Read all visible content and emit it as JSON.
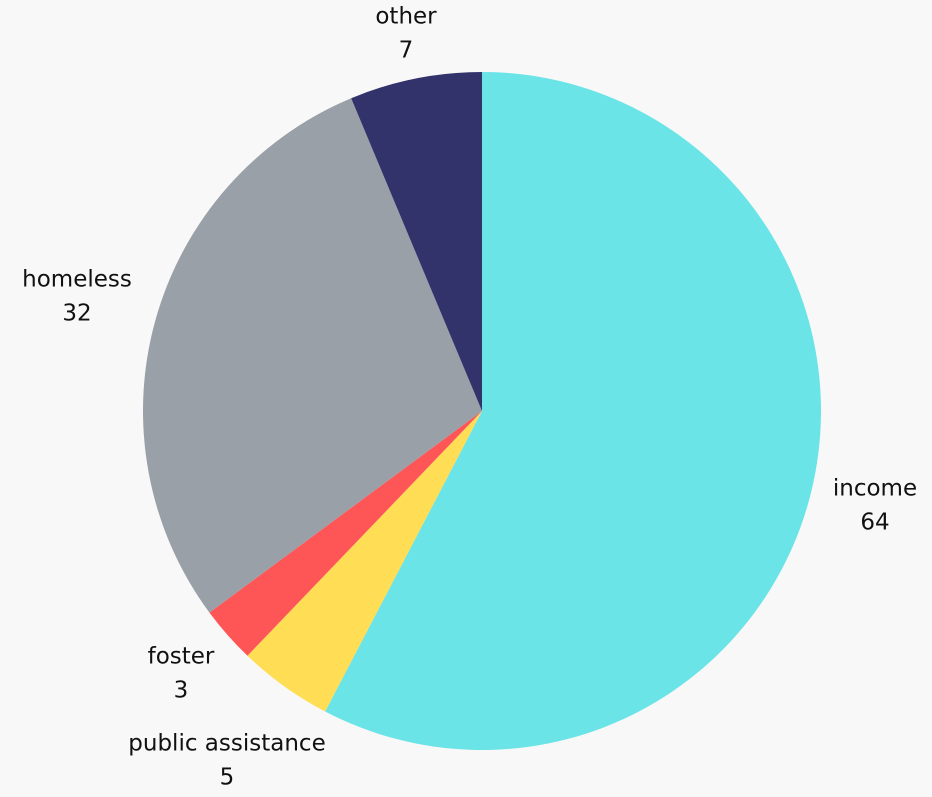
{
  "chart_data": {
    "type": "pie",
    "title": "",
    "slices": [
      {
        "label": "income",
        "value": 64,
        "color": "#6ae4e7"
      },
      {
        "label": "public assistance",
        "value": 5,
        "color": "#ffdd55"
      },
      {
        "label": "foster",
        "value": 3,
        "color": "#fe5556"
      },
      {
        "label": "homeless",
        "value": 32,
        "color": "#9aa0a8"
      },
      {
        "label": "other",
        "value": 7,
        "color": "#33336b"
      }
    ],
    "start": "top",
    "direction": "clockwise",
    "labels_outside": true,
    "legend": "none"
  }
}
